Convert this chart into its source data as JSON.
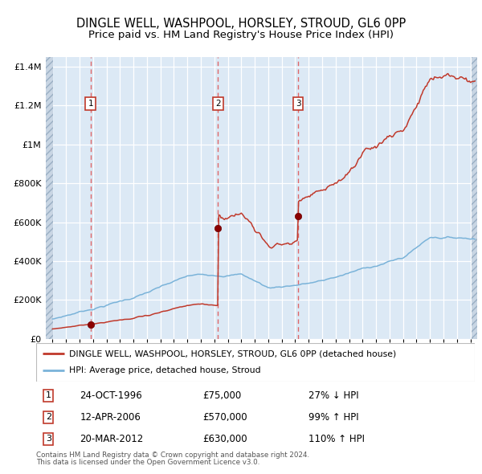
{
  "title": "DINGLE WELL, WASHPOOL, HORSLEY, STROUD, GL6 0PP",
  "subtitle": "Price paid vs. HM Land Registry's House Price Index (HPI)",
  "legend_line1": "DINGLE WELL, WASHPOOL, HORSLEY, STROUD, GL6 0PP (detached house)",
  "legend_line2": "HPI: Average price, detached house, Stroud",
  "footer1": "Contains HM Land Registry data © Crown copyright and database right 2024.",
  "footer2": "This data is licensed under the Open Government Licence v3.0.",
  "transactions": [
    {
      "num": 1,
      "date": "24-OCT-1996",
      "price": 75000,
      "hpi_pct": "27% ↓ HPI",
      "year_x": 1996.82
    },
    {
      "num": 2,
      "date": "12-APR-2006",
      "price": 570000,
      "hpi_pct": "99% ↑ HPI",
      "year_x": 2006.28
    },
    {
      "num": 3,
      "date": "20-MAR-2012",
      "price": 630000,
      "hpi_pct": "110% ↑ HPI",
      "year_x": 2012.22
    }
  ],
  "ylim": [
    0,
    1450000
  ],
  "xlim_start": 1993.5,
  "xlim_end": 2025.5,
  "bg_color": "#dce9f5",
  "grid_color": "#ffffff",
  "red_line_color": "#c0392b",
  "blue_line_color": "#7ab3d9",
  "vline_color": "#e05050",
  "marker_color": "#8b0000",
  "box_edge_color": "#c0392b",
  "hatch_bg": "#c8d5e3",
  "title_fontsize": 10.5,
  "subtitle_fontsize": 9.5
}
